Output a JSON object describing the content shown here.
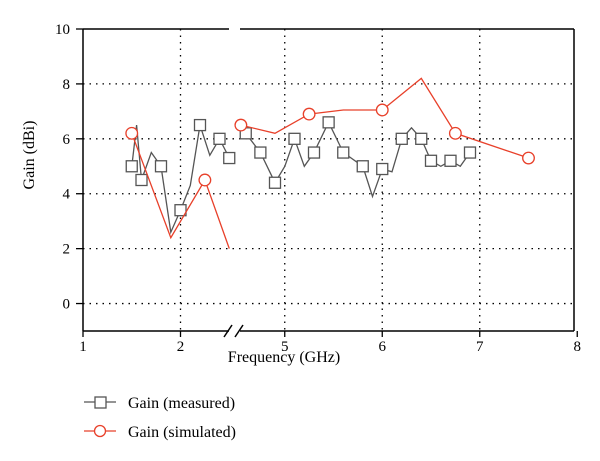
{
  "chart_data": {
    "type": "line",
    "title": "",
    "xlabel": "Frequency (GHz)",
    "ylabel": "Gain (dBi)",
    "ylim": [
      -1,
      10
    ],
    "yticks": [
      "0",
      "2",
      "4",
      "6",
      "8",
      "10"
    ],
    "xticks": [
      "1",
      "2",
      "5",
      "6",
      "7",
      "8"
    ],
    "x_axis_break": true,
    "x_segments": [
      [
        1,
        2.5
      ],
      [
        4.5,
        8
      ]
    ],
    "grid": "dotted",
    "legend_position": "bottom-left",
    "colors": {
      "measured": "#555555",
      "simulated": "#e8402a"
    },
    "series": [
      {
        "name": "Gain (measured)",
        "line_segments": [
          [
            [
              1.5,
              5.0
            ],
            [
              1.55,
              6.5
            ],
            [
              1.6,
              4.5
            ],
            [
              1.7,
              5.5
            ],
            [
              1.8,
              5.0
            ],
            [
              1.9,
              2.6
            ],
            [
              2.0,
              3.4
            ],
            [
              2.1,
              4.3
            ],
            [
              2.2,
              6.5
            ],
            [
              2.3,
              5.4
            ],
            [
              2.4,
              6.0
            ],
            [
              2.5,
              5.3
            ]
          ],
          [
            [
              4.6,
              6.2
            ],
            [
              4.75,
              5.5
            ],
            [
              4.9,
              4.4
            ],
            [
              5.0,
              5.0
            ],
            [
              5.1,
              6.0
            ],
            [
              5.2,
              5.0
            ],
            [
              5.3,
              5.5
            ],
            [
              5.45,
              6.6
            ],
            [
              5.6,
              5.5
            ],
            [
              5.8,
              5.0
            ],
            [
              5.9,
              3.9
            ],
            [
              6.0,
              4.9
            ],
            [
              6.1,
              4.8
            ],
            [
              6.2,
              6.0
            ],
            [
              6.3,
              6.4
            ],
            [
              6.4,
              6.0
            ],
            [
              6.5,
              5.2
            ],
            [
              6.6,
              5.0
            ],
            [
              6.7,
              5.2
            ],
            [
              6.8,
              5.0
            ],
            [
              6.9,
              5.5
            ]
          ]
        ],
        "markers": [
          [
            1.5,
            5.0
          ],
          [
            1.6,
            4.5
          ],
          [
            1.8,
            5.0
          ],
          [
            2.0,
            3.4
          ],
          [
            2.2,
            6.5
          ],
          [
            2.4,
            6.0
          ],
          [
            2.5,
            5.3
          ],
          [
            4.6,
            6.2
          ],
          [
            4.75,
            5.5
          ],
          [
            4.9,
            4.4
          ],
          [
            5.1,
            6.0
          ],
          [
            5.3,
            5.5
          ],
          [
            5.45,
            6.6
          ],
          [
            5.6,
            5.5
          ],
          [
            5.8,
            5.0
          ],
          [
            6.0,
            4.9
          ],
          [
            6.2,
            6.0
          ],
          [
            6.4,
            6.0
          ],
          [
            6.5,
            5.2
          ],
          [
            6.7,
            5.2
          ],
          [
            6.9,
            5.5
          ]
        ]
      },
      {
        "name": "Gain (simulated)",
        "line_segments": [
          [
            [
              1.5,
              6.2
            ],
            [
              1.9,
              2.4
            ],
            [
              2.25,
              4.5
            ],
            [
              2.5,
              2.0
            ]
          ],
          [
            [
              4.55,
              6.5
            ],
            [
              4.9,
              6.2
            ],
            [
              5.25,
              6.9
            ],
            [
              5.6,
              7.05
            ],
            [
              6.0,
              7.05
            ],
            [
              6.4,
              8.2
            ],
            [
              6.75,
              6.2
            ],
            [
              7.5,
              5.3
            ]
          ]
        ],
        "markers": [
          [
            1.5,
            6.2
          ],
          [
            2.25,
            4.5
          ],
          [
            4.55,
            6.5
          ],
          [
            5.25,
            6.9
          ],
          [
            6.0,
            7.05
          ],
          [
            6.75,
            6.2
          ],
          [
            7.5,
            5.3
          ]
        ]
      }
    ]
  }
}
